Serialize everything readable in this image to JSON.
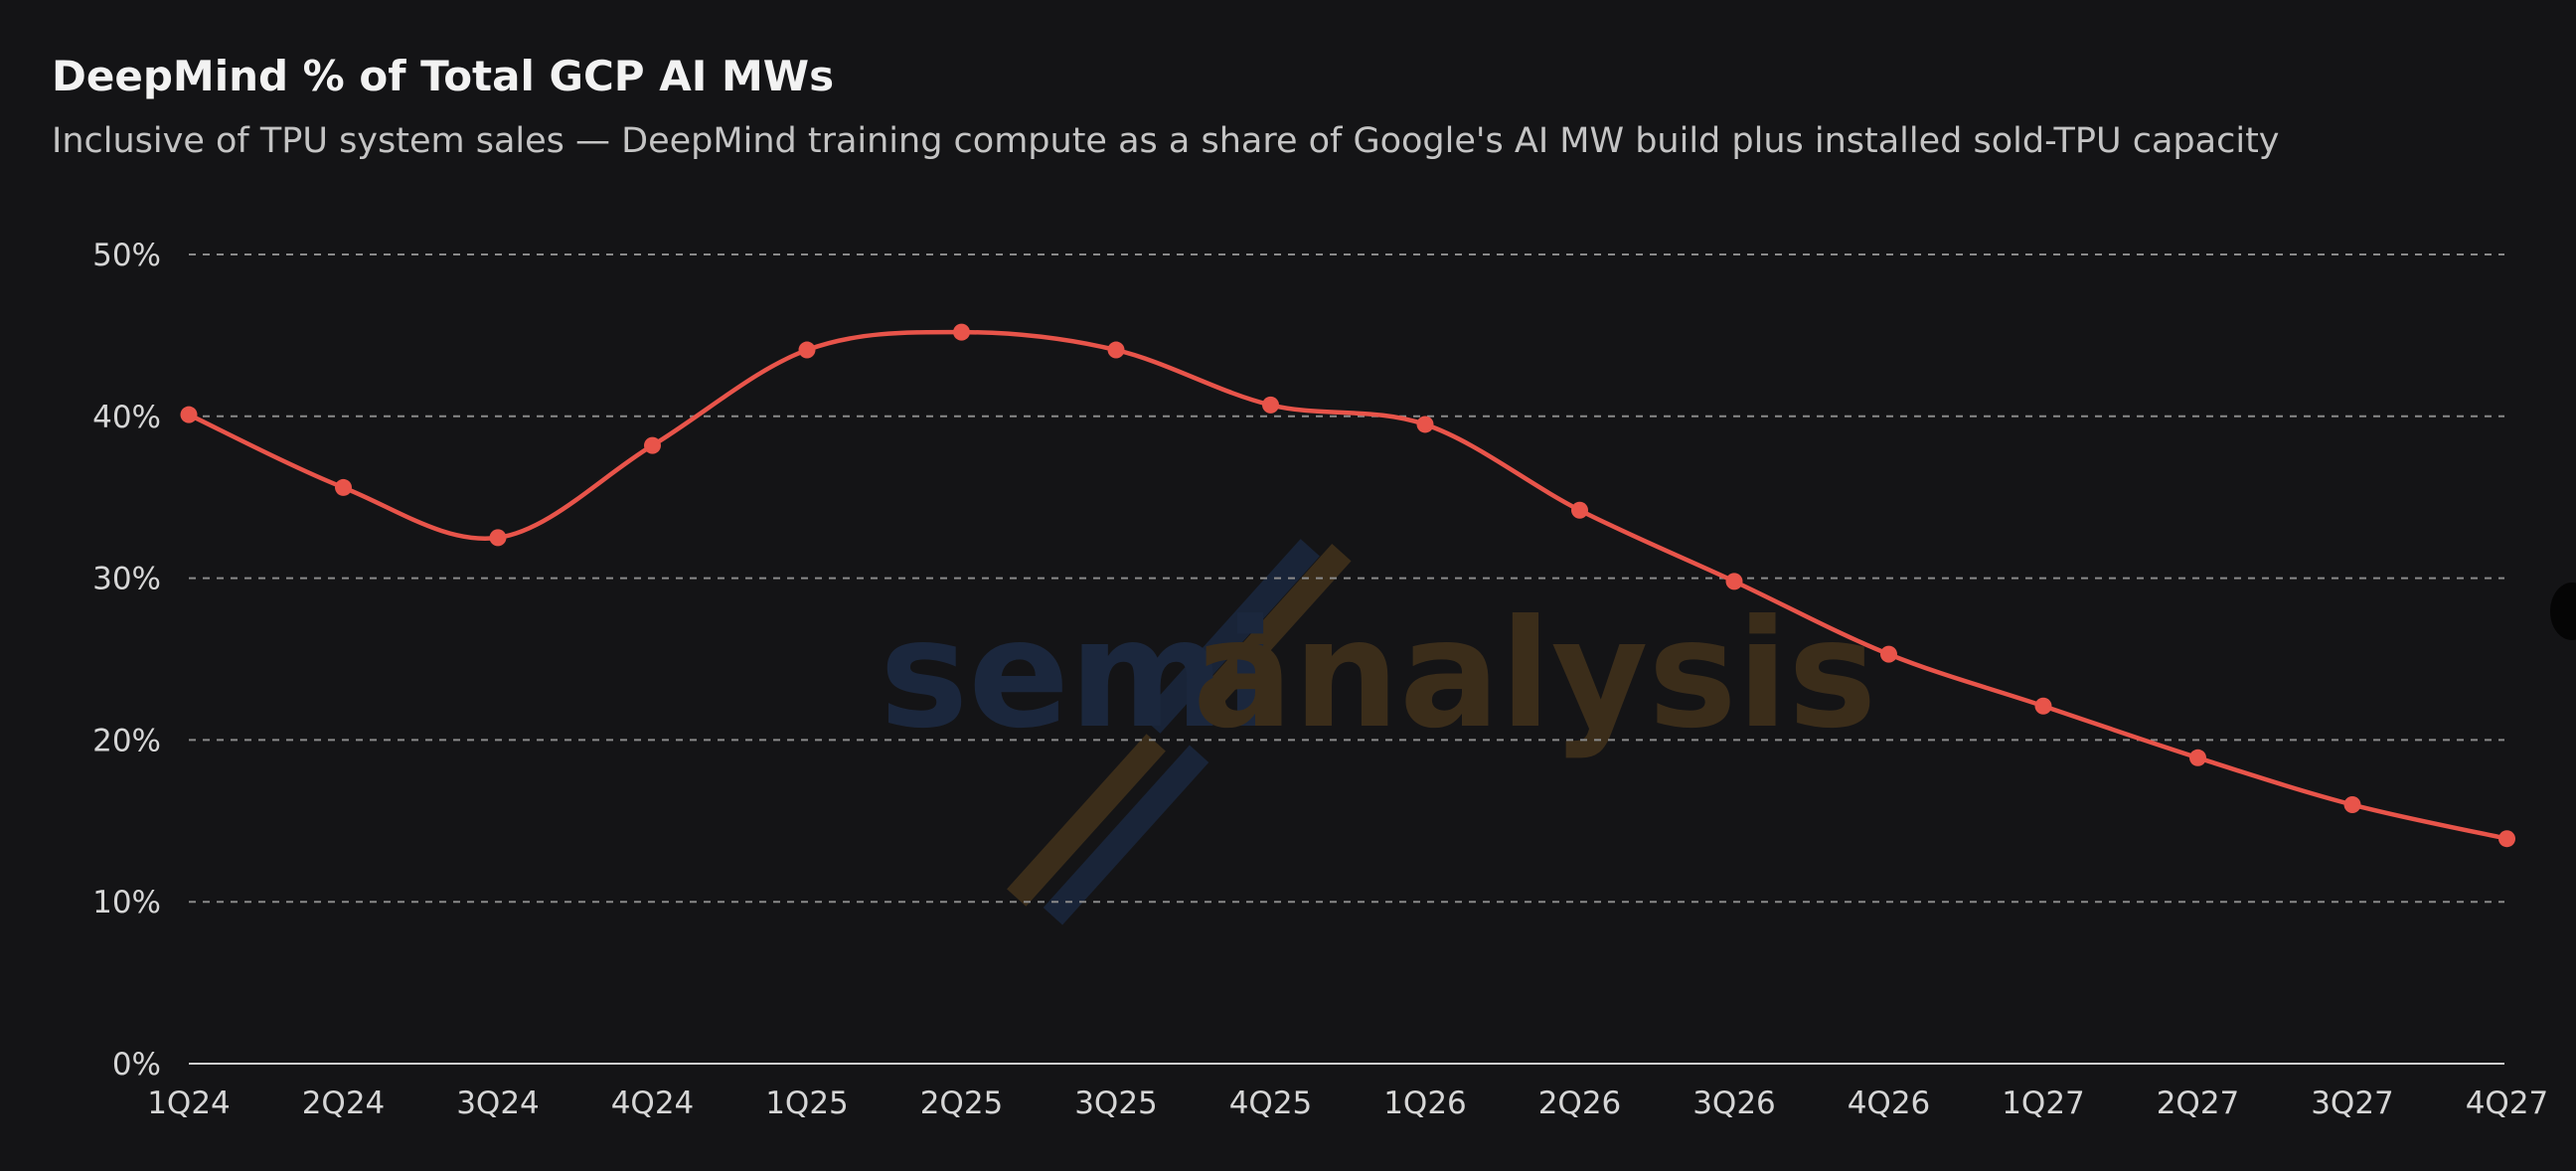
{
  "chart_data": {
    "type": "line",
    "title": "DeepMind % of Total GCP AI MWs",
    "subtitle": "Inclusive of TPU system sales — DeepMind training compute as a share of Google's AI MW build plus installed sold-TPU capacity",
    "xlabel": "",
    "ylabel": "",
    "categories": [
      "1Q24",
      "2Q24",
      "3Q24",
      "4Q24",
      "1Q25",
      "2Q25",
      "3Q25",
      "4Q25",
      "1Q26",
      "2Q26",
      "3Q26",
      "4Q26",
      "1Q27",
      "2Q27",
      "3Q27",
      "4Q27"
    ],
    "series": [
      {
        "values": [
          40.1,
          35.6,
          32.5,
          38.2,
          44.1,
          45.2,
          44.1,
          40.7,
          39.5,
          34.2,
          29.8,
          25.3,
          22.1,
          18.9,
          16.0,
          13.9
        ],
        "color": "#e8544a"
      }
    ],
    "ylim": [
      0,
      50
    ],
    "yticks": [
      0,
      10,
      20,
      30,
      40,
      50
    ],
    "ytick_labels": [
      "0%",
      "10%",
      "20%",
      "30%",
      "40%",
      "50%"
    ],
    "grid": true,
    "grid_style": "dashed",
    "legend": "none",
    "watermark": "semianalysis"
  },
  "colors": {
    "background": "#141416",
    "line": "#e8544a",
    "grid": "#8a8a8a",
    "axis": "#cfcfcf"
  }
}
